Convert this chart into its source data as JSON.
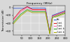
{
  "title": "Frequency (MHz)",
  "ylabel": "Transmission (dB)",
  "xlim": [
    0,
    300
  ],
  "ylim": [
    -70,
    5
  ],
  "yticks": [
    -60,
    -40,
    -20,
    0
  ],
  "xticks": [
    50,
    100,
    150,
    200,
    250,
    300
  ],
  "legend_labels": [
    "Ref.",
    "2 ant.",
    "3 ant.",
    "2 ant. b",
    "3 ant. b"
  ],
  "legend_colors": [
    "#3355cc",
    "#dd2222",
    "#ff66aa",
    "#33aa33",
    "#aaaa00"
  ],
  "background_color": "#d8d8d8",
  "grid_color": "#ffffff"
}
